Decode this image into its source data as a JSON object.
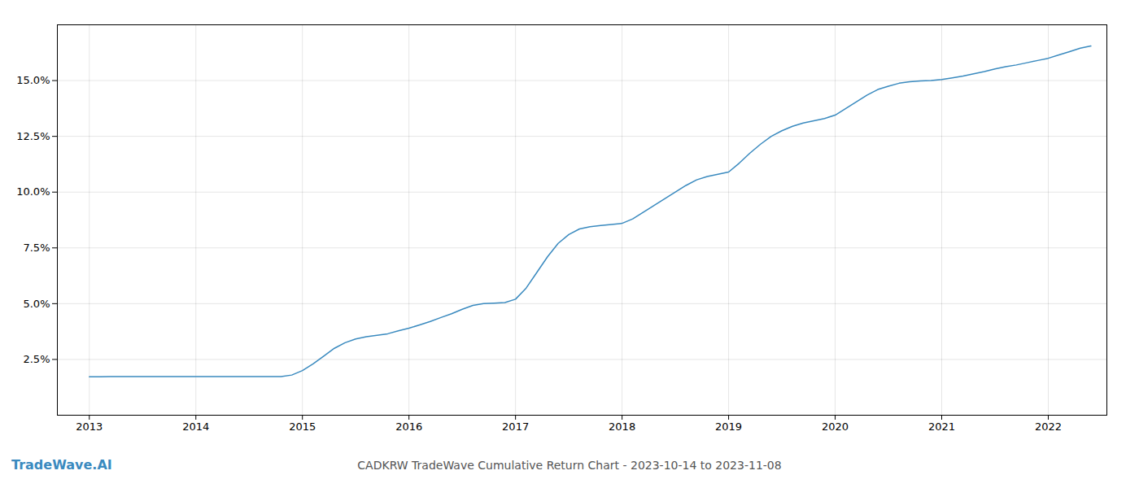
{
  "chart_data": {
    "type": "line",
    "title": "CADKRW TradeWave Cumulative Return Chart - 2023-10-14 to 2023-11-08",
    "annotations": [
      {
        "text": "TradeWave.AI",
        "color": "#3a8abf"
      }
    ],
    "color": "#3a8abf",
    "grid": true,
    "x": [
      2013.0,
      2013.1,
      2013.2,
      2013.3,
      2013.4,
      2013.5,
      2013.6,
      2013.7,
      2013.8,
      2013.9,
      2014.0,
      2014.1,
      2014.2,
      2014.3,
      2014.4,
      2014.5,
      2014.6,
      2014.7,
      2014.8,
      2014.9,
      2015.0,
      2015.1,
      2015.2,
      2015.3,
      2015.4,
      2015.5,
      2015.6,
      2015.7,
      2015.8,
      2015.9,
      2016.0,
      2016.1,
      2016.2,
      2016.3,
      2016.4,
      2016.5,
      2016.6,
      2016.7,
      2016.8,
      2016.9,
      2017.0,
      2017.1,
      2017.2,
      2017.3,
      2017.4,
      2017.5,
      2017.6,
      2017.7,
      2017.8,
      2017.9,
      2018.0,
      2018.1,
      2018.2,
      2018.3,
      2018.4,
      2018.5,
      2018.6,
      2018.7,
      2018.8,
      2018.9,
      2019.0,
      2019.1,
      2019.2,
      2019.3,
      2019.4,
      2019.5,
      2019.6,
      2019.7,
      2019.8,
      2019.9,
      2020.0,
      2020.1,
      2020.2,
      2020.3,
      2020.4,
      2020.5,
      2020.6,
      2020.7,
      2020.8,
      2020.9,
      2021.0,
      2021.1,
      2021.2,
      2021.3,
      2021.4,
      2021.5,
      2021.6,
      2021.7,
      2021.8,
      2021.9,
      2022.0,
      2022.1,
      2022.2,
      2022.3,
      2022.4
    ],
    "values": [
      1.72,
      1.72,
      1.73,
      1.73,
      1.73,
      1.73,
      1.73,
      1.73,
      1.73,
      1.73,
      1.73,
      1.73,
      1.73,
      1.73,
      1.73,
      1.73,
      1.73,
      1.73,
      1.73,
      1.8,
      2.0,
      2.3,
      2.65,
      3.0,
      3.25,
      3.42,
      3.52,
      3.58,
      3.65,
      3.78,
      3.9,
      4.05,
      4.2,
      4.38,
      4.55,
      4.75,
      4.92,
      5.0,
      5.02,
      5.05,
      5.2,
      5.7,
      6.4,
      7.1,
      7.7,
      8.1,
      8.35,
      8.45,
      8.5,
      8.55,
      8.6,
      8.8,
      9.1,
      9.4,
      9.7,
      10.0,
      10.3,
      10.55,
      10.7,
      10.8,
      10.9,
      11.3,
      11.75,
      12.15,
      12.5,
      12.75,
      12.95,
      13.1,
      13.2,
      13.3,
      13.45,
      13.75,
      14.05,
      14.35,
      14.6,
      14.75,
      14.88,
      14.95,
      14.98,
      15.0,
      15.05,
      15.12,
      15.2,
      15.3,
      15.4,
      15.52,
      15.62,
      15.7,
      15.8,
      15.9,
      16.0,
      16.15,
      16.3,
      16.45,
      16.55
    ],
    "xlim": [
      2012.7,
      2022.55
    ],
    "xticks": [
      2013,
      2014,
      2015,
      2016,
      2017,
      2018,
      2019,
      2020,
      2021,
      2022
    ],
    "ylim": [
      0,
      17.5
    ],
    "yticks": [
      {
        "value": 2.5,
        "label": "2.5%"
      },
      {
        "value": 5.0,
        "label": "5.0%"
      },
      {
        "value": 7.5,
        "label": "7.5%"
      },
      {
        "value": 10.0,
        "label": "10.0%"
      },
      {
        "value": 12.5,
        "label": "12.5%"
      },
      {
        "value": 15.0,
        "label": "15.0%"
      }
    ]
  }
}
